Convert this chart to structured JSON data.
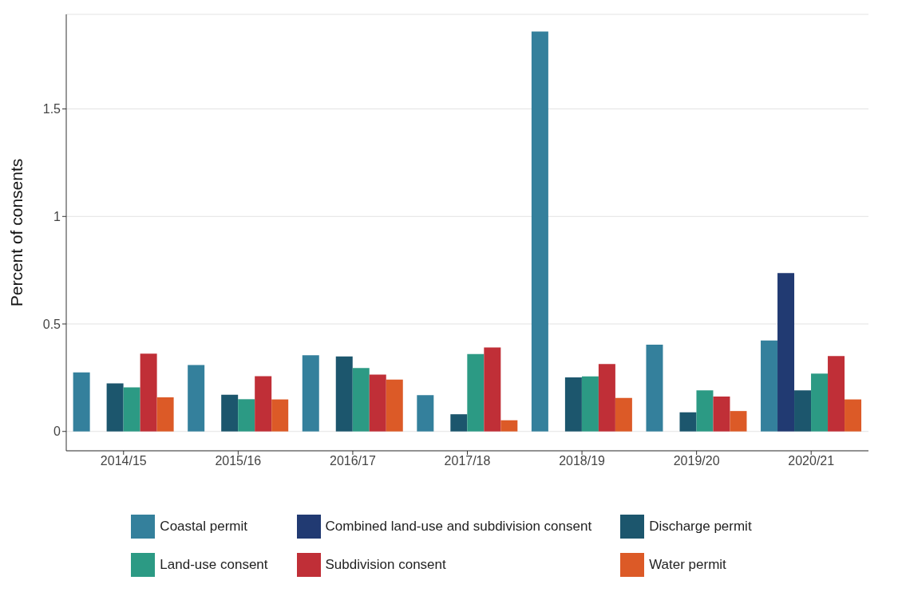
{
  "chart_data": {
    "type": "bar",
    "ylabel": "Percent of consents",
    "categories": [
      "2014/15",
      "2015/16",
      "2016/17",
      "2017/18",
      "2018/19",
      "2019/20",
      "2020/21"
    ],
    "series": [
      {
        "name": "Coastal permit",
        "color": "#34809c",
        "values": [
          0.275,
          0.309,
          0.354,
          0.169,
          1.86,
          0.404,
          0.423
        ]
      },
      {
        "name": "Combined land-use and subdivision consent",
        "color": "#213a72",
        "values": [
          null,
          null,
          null,
          null,
          null,
          null,
          0.737
        ]
      },
      {
        "name": "Discharge permit",
        "color": "#1c566d",
        "values": [
          0.224,
          0.171,
          0.349,
          0.08,
          0.251,
          0.089,
          0.191
        ]
      },
      {
        "name": "Land-use consent",
        "color": "#2c9a84",
        "values": [
          0.205,
          0.15,
          0.295,
          0.36,
          0.256,
          0.191,
          0.269
        ]
      },
      {
        "name": "Subdivision consent",
        "color": "#c02f37",
        "values": [
          0.362,
          0.257,
          0.264,
          0.391,
          0.314,
          0.162,
          0.351
        ]
      },
      {
        "name": "Water permit",
        "color": "#dc5a27",
        "values": [
          0.159,
          0.149,
          0.241,
          0.052,
          0.156,
          0.095,
          0.149
        ]
      }
    ],
    "ylim": [
      -0.09,
      1.94
    ],
    "yticks": [
      0,
      0.5,
      1,
      1.5
    ],
    "grid": "y",
    "legend": "bottom"
  }
}
